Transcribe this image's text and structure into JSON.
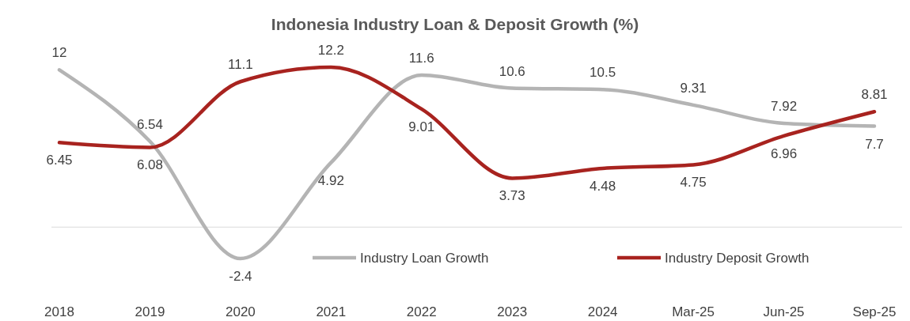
{
  "chart_data": {
    "type": "line",
    "title": "Indonesia Industry Loan & Deposit Growth (%)",
    "categories": [
      "2018",
      "2019",
      "2020",
      "2021",
      "2022",
      "2023",
      "2024",
      "Mar-25",
      "Jun-25",
      "Sep-25"
    ],
    "series": [
      {
        "name": "Industry Loan Growth",
        "color": "#b4b4b4",
        "values": [
          12,
          6.54,
          -2.4,
          4.92,
          11.6,
          10.6,
          10.5,
          9.31,
          7.92,
          7.7
        ]
      },
      {
        "name": "Industry Deposit Growth",
        "color": "#a8231f",
        "values": [
          6.45,
          6.08,
          11.1,
          12.2,
          9.01,
          3.73,
          4.48,
          4.75,
          6.96,
          8.81
        ]
      }
    ],
    "data_labels": true,
    "legend": "bottom",
    "marker": "none",
    "line_style": "solid"
  }
}
